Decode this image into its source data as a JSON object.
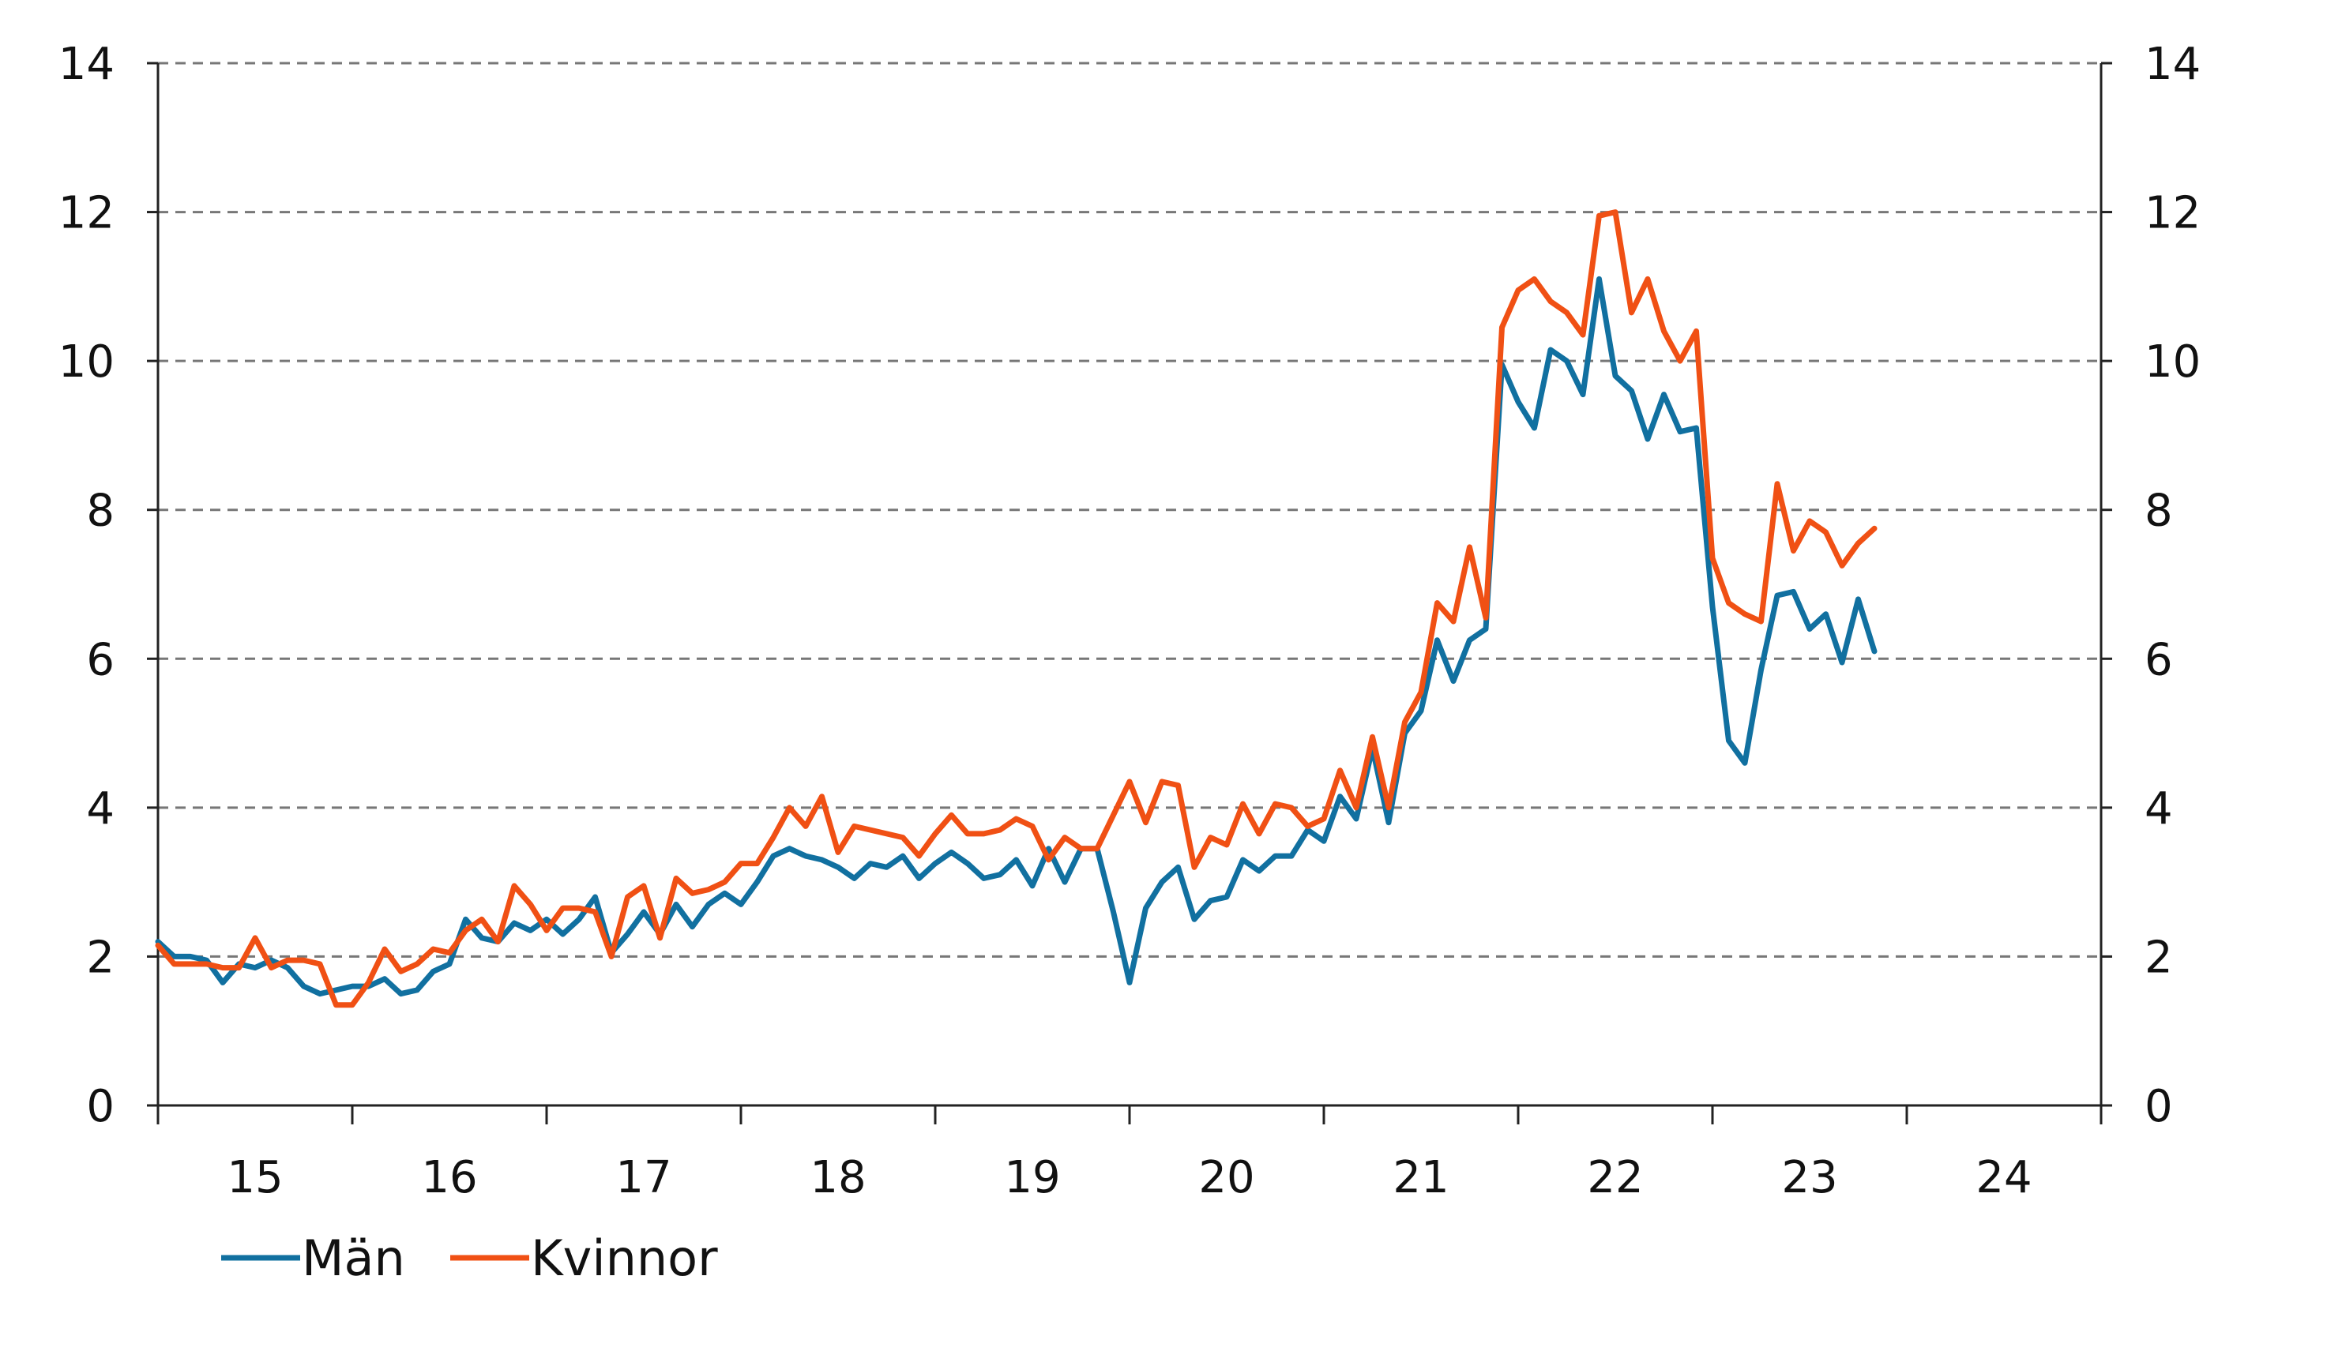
{
  "chart_data": {
    "type": "line",
    "title": "",
    "xlabel": "",
    "ylabel": "",
    "x_tick_labels": [
      "15",
      "16",
      "17",
      "18",
      "19",
      "20",
      "21",
      "22",
      "23",
      "24"
    ],
    "y_ticks": [
      0,
      2,
      4,
      6,
      8,
      10,
      12,
      14
    ],
    "y_tick_labels": [
      "0",
      "2",
      "4",
      "6",
      "8",
      "10",
      "12",
      "14"
    ],
    "ylim": [
      0,
      14
    ],
    "xlim": [
      2015.0,
      2025.0
    ],
    "grid": "horizontal dashed",
    "right_axis_mirrors_left": true,
    "legend_position": "bottom-left",
    "series": [
      {
        "name": "Män",
        "color": "#1170a0",
        "start": "2015-01",
        "frequency": "monthly",
        "values": [
          2.2,
          2.0,
          2.0,
          1.95,
          1.65,
          1.9,
          1.85,
          1.95,
          1.85,
          1.6,
          1.5,
          1.55,
          1.6,
          1.6,
          1.7,
          1.5,
          1.55,
          1.8,
          1.9,
          2.5,
          2.25,
          2.2,
          2.45,
          2.35,
          2.5,
          2.3,
          2.5,
          2.8,
          2.05,
          2.3,
          2.6,
          2.3,
          2.7,
          2.4,
          2.7,
          2.85,
          2.7,
          3.0,
          3.35,
          3.45,
          3.35,
          3.3,
          3.2,
          3.05,
          3.25,
          3.2,
          3.35,
          3.05,
          3.25,
          3.4,
          3.25,
          3.05,
          3.1,
          3.3,
          2.95,
          3.45,
          3.0,
          3.45,
          3.45,
          2.6,
          1.65,
          2.65,
          3.0,
          3.2,
          2.5,
          2.75,
          2.8,
          3.3,
          3.15,
          3.35,
          3.35,
          3.7,
          3.55,
          4.15,
          3.85,
          4.8,
          3.8,
          5.0,
          5.3,
          6.25,
          5.7,
          6.25,
          6.4,
          9.95,
          9.45,
          9.1,
          10.15,
          10.0,
          9.55,
          11.1,
          9.8,
          9.6,
          8.95,
          9.55,
          9.05,
          9.1,
          6.7,
          4.9,
          4.6,
          5.85,
          6.85,
          6.9,
          6.4,
          6.6,
          5.95,
          6.8,
          6.1
        ]
      },
      {
        "name": "Kvinnor",
        "color": "#f05014",
        "start": "2015-01",
        "frequency": "monthly",
        "values": [
          2.15,
          1.9,
          1.9,
          1.9,
          1.85,
          1.85,
          2.25,
          1.85,
          1.95,
          1.95,
          1.9,
          1.35,
          1.35,
          1.65,
          2.1,
          1.8,
          1.9,
          2.1,
          2.05,
          2.35,
          2.5,
          2.2,
          2.95,
          2.7,
          2.35,
          2.65,
          2.65,
          2.6,
          2.0,
          2.8,
          2.95,
          2.25,
          3.05,
          2.85,
          2.9,
          3.0,
          3.25,
          3.25,
          3.6,
          4.0,
          3.75,
          4.15,
          3.4,
          3.75,
          3.7,
          3.65,
          3.6,
          3.35,
          3.65,
          3.9,
          3.65,
          3.65,
          3.7,
          3.85,
          3.75,
          3.3,
          3.6,
          3.45,
          3.45,
          3.9,
          4.35,
          3.8,
          4.35,
          4.3,
          3.2,
          3.6,
          3.5,
          4.05,
          3.65,
          4.05,
          4.0,
          3.75,
          3.85,
          4.5,
          4.0,
          4.95,
          4.0,
          5.15,
          5.55,
          6.75,
          6.5,
          7.5,
          6.55,
          10.45,
          10.95,
          11.1,
          10.8,
          10.65,
          10.35,
          11.95,
          12.0,
          10.65,
          11.1,
          10.4,
          10.0,
          10.4,
          7.35,
          6.75,
          6.6,
          6.5,
          8.35,
          7.45,
          7.85,
          7.7,
          7.25,
          7.55,
          7.75
        ]
      }
    ]
  }
}
